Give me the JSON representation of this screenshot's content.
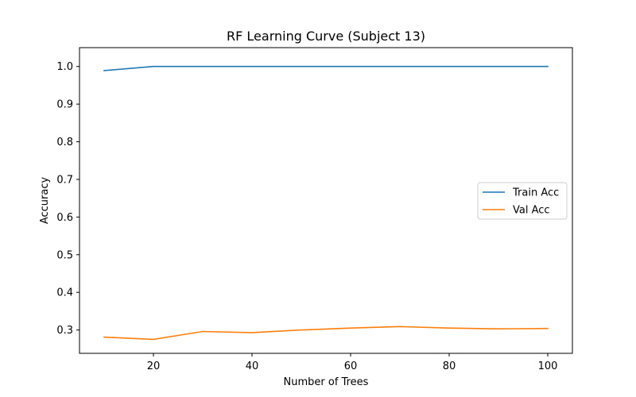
{
  "chart_data": {
    "type": "line",
    "title": "RF Learning Curve (Subject 13)",
    "xlabel": "Number of Trees",
    "ylabel": "Accuracy",
    "x": [
      10,
      20,
      30,
      40,
      50,
      60,
      70,
      80,
      90,
      100
    ],
    "xlim": [
      5,
      105
    ],
    "ylim": [
      0.238,
      1.05
    ],
    "xticks": [
      20,
      40,
      60,
      80,
      100
    ],
    "yticks": [
      0.3,
      0.4,
      0.5,
      0.6,
      0.7,
      0.8,
      0.9,
      1.0
    ],
    "ytick_labels": [
      "0.3",
      "0.4",
      "0.5",
      "0.6",
      "0.7",
      "0.8",
      "0.9",
      "1.0"
    ],
    "grid": false,
    "legend_position": "center-right",
    "series": [
      {
        "name": "Train Acc",
        "color": "#1f77b4",
        "values": [
          0.989,
          1.0,
          1.0,
          1.0,
          1.0,
          1.0,
          1.0,
          1.0,
          1.0,
          1.0
        ]
      },
      {
        "name": "Val Acc",
        "color": "#ff7f0e",
        "values": [
          0.281,
          0.275,
          0.296,
          0.293,
          0.3,
          0.305,
          0.309,
          0.305,
          0.303,
          0.304
        ]
      }
    ]
  }
}
